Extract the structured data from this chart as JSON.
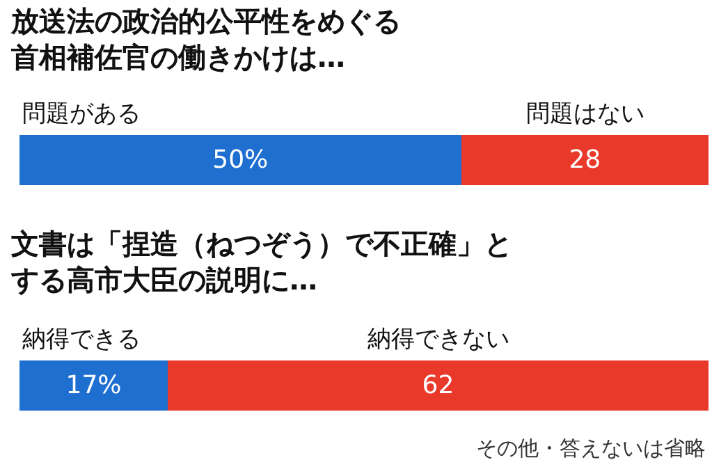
{
  "chart_data": [
    {
      "type": "bar",
      "orientation": "horizontal",
      "stacked": true,
      "title": "放送法の政治的公平性をめぐる首相補佐官の働きかけは…",
      "categories": [
        null
      ],
      "series": [
        {
          "name": "問題がある",
          "color": "#1f6fd1",
          "values": [
            50
          ],
          "value_labels": [
            "50%"
          ]
        },
        {
          "name": "問題はない",
          "color": "#e8392b",
          "values": [
            28
          ],
          "value_labels": [
            "28"
          ]
        }
      ]
    },
    {
      "type": "bar",
      "orientation": "horizontal",
      "stacked": true,
      "title": "文書は「捏造（ねつぞう）で不正確」とする高市大臣の説明に…",
      "categories": [
        null
      ],
      "series": [
        {
          "name": "納得できる",
          "color": "#1f6fd1",
          "values": [
            17
          ],
          "value_labels": [
            "17%"
          ]
        },
        {
          "name": "納得できない",
          "color": "#e8392b",
          "values": [
            62
          ],
          "value_labels": [
            "62"
          ]
        }
      ],
      "annotations": [
        "その他・答えないは省略"
      ]
    }
  ]
}
